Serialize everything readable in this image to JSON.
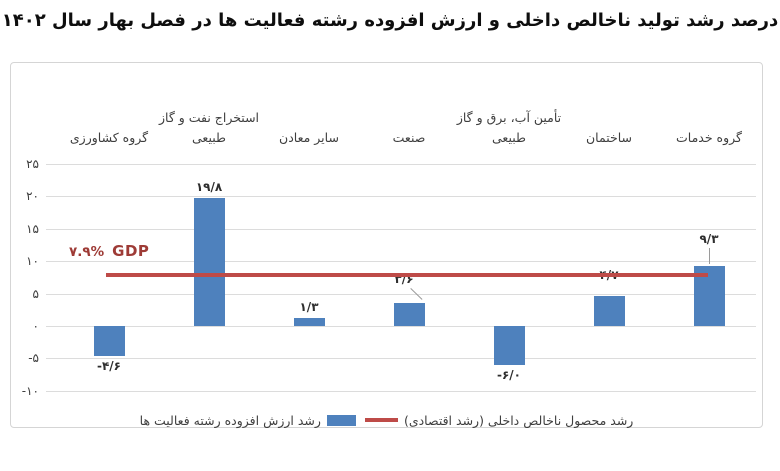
{
  "title": "درصد رشد تولید ناخالص داخلی و ارزش افزوده رشته فعالیت ها در فصل بهار سال ۱۴۰۲",
  "gdp_annotation": {
    "value": "۷.۹%",
    "label": "GDP"
  },
  "colors": {
    "bar": "#4E81BD",
    "line": "#BE4B48",
    "annotation": "#9E3B36",
    "grid": "#DCDCDC",
    "text": "#3E3E3E",
    "frame_border": "#D5D5D5"
  },
  "chart_data": {
    "type": "bar",
    "title": "درصد رشد تولید ناخالص داخلی و ارزش افزوده رشته فعالیت ها در فصل بهار سال ۱۴۰۲",
    "xlabel": "",
    "ylabel": "",
    "categories": [
      "گروه کشاورزی",
      "استخراج نفت و گاز طبیعی",
      "سایر معادن",
      "صنعت",
      "تأمین آب، برق و گاز طبیعی",
      "ساختمان",
      "گروه خدمات"
    ],
    "category_display_lines": [
      [
        "گروه کشاورزی"
      ],
      [
        "استخراج نفت و گاز",
        "طبیعی"
      ],
      [
        "سایر معادن"
      ],
      [
        "صنعت"
      ],
      [
        "تأمین آب، برق و گاز",
        "طبیعی"
      ],
      [
        "ساختمان"
      ],
      [
        "گروه خدمات"
      ]
    ],
    "series": [
      {
        "name": "رشد ارزش افزوده رشته فعالیت ها",
        "type": "bar",
        "values": [
          -4.6,
          19.8,
          1.3,
          3.6,
          -6.0,
          4.7,
          9.3
        ],
        "value_labels": [
          "-۴/۶",
          "۱۹/۸",
          "۱/۳",
          "۳/۶",
          "-۶/۰",
          "۴/۷",
          "۹/۳"
        ]
      },
      {
        "name": "رشد محصول ناخالص داخلی (رشد اقتصادی)",
        "type": "line",
        "value": 7.9,
        "value_label": "۷.۹%"
      }
    ],
    "y_axis": {
      "min": -10,
      "max": 25,
      "ticks": [
        {
          "value": 25,
          "label": "۲۵"
        },
        {
          "value": 20,
          "label": "۲۰"
        },
        {
          "value": 15,
          "label": "۱۵"
        },
        {
          "value": 10,
          "label": "۱۰"
        },
        {
          "value": 5,
          "label": "۵"
        },
        {
          "value": 0,
          "label": "۰"
        },
        {
          "value": -5,
          "label": "-۵"
        },
        {
          "value": -10,
          "label": "-۱۰"
        }
      ]
    },
    "grid": "horizontal",
    "legend_position": "bottom"
  }
}
